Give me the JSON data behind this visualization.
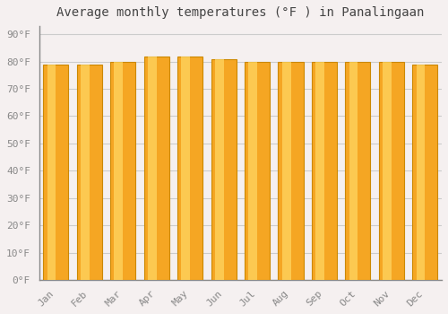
{
  "title": "Average monthly temperatures (°F ) in Panalingaan",
  "months": [
    "Jan",
    "Feb",
    "Mar",
    "Apr",
    "May",
    "Jun",
    "Jul",
    "Aug",
    "Sep",
    "Oct",
    "Nov",
    "Dec"
  ],
  "values": [
    79,
    79,
    80,
    82,
    82,
    81,
    80,
    80,
    80,
    80,
    80,
    79
  ],
  "bar_color_main": "#F5A623",
  "bar_color_center": "#FFD966",
  "background_color": "#F5F0F0",
  "plot_bg_color": "#F5F0F0",
  "grid_color": "#CCCCCC",
  "yticks": [
    0,
    10,
    20,
    30,
    40,
    50,
    60,
    70,
    80,
    90
  ],
  "ylim": [
    0,
    93
  ],
  "title_fontsize": 10,
  "tick_fontsize": 8,
  "bar_edge_color": "#CC8800"
}
